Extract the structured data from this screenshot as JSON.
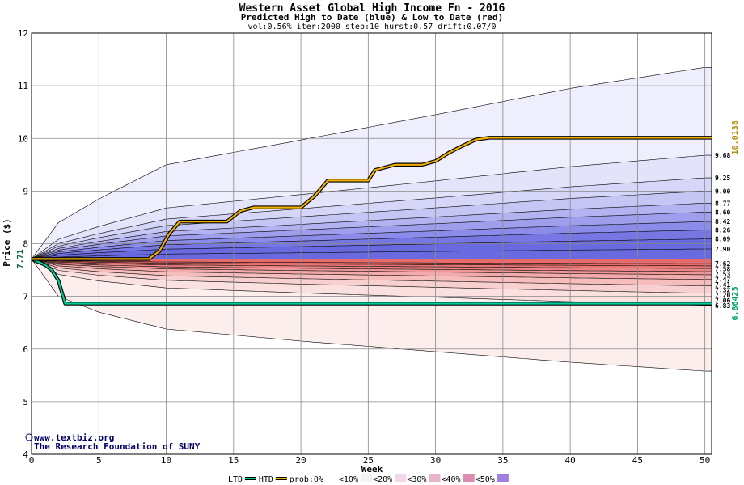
{
  "chart_data": {
    "type": "area",
    "title": "Western Asset Global High Income Fn - 2016",
    "subtitle": "Predicted High to Date (blue) &  Low to Date (red)",
    "params": "vol:0.56% iter:2000 step:10 hurst:0.57 drift:0.07/0",
    "xlabel": "Week",
    "ylabel": "Price ($)",
    "xlim": [
      0,
      50.5
    ],
    "ylim": [
      4,
      12
    ],
    "x_ticks": [
      0,
      5,
      10,
      15,
      20,
      25,
      30,
      35,
      40,
      45,
      50
    ],
    "y_ticks": [
      4,
      5,
      6,
      7,
      8,
      9,
      10,
      11,
      12
    ],
    "grid": true,
    "start_price": 7.71,
    "start_label": "7.71",
    "high_quantile_labels": [
      "9.68",
      "9.25",
      "9.00",
      "8.77",
      "8.60",
      "8.42",
      "8.26",
      "8.09",
      "7.90"
    ],
    "low_quantile_labels": [
      "7.62",
      "7.58",
      "7.53",
      "7.47",
      "7.41",
      "7.32",
      "7.20",
      "7.06",
      "6.83"
    ],
    "high_envelope": [
      [
        0,
        7.71
      ],
      [
        2,
        8.4
      ],
      [
        5,
        8.85
      ],
      [
        10,
        9.5
      ],
      [
        20,
        9.97
      ],
      [
        30,
        10.45
      ],
      [
        40,
        10.95
      ],
      [
        50,
        11.35
      ]
    ],
    "low_envelope": [
      [
        0,
        7.71
      ],
      [
        2,
        7.0
      ],
      [
        5,
        6.7
      ],
      [
        10,
        6.38
      ],
      [
        20,
        6.15
      ],
      [
        30,
        5.95
      ],
      [
        40,
        5.75
      ],
      [
        50,
        5.58
      ]
    ],
    "high_to_date": {
      "name": "HTD",
      "color": "#f0b000",
      "final_value": 10.0138,
      "final_label": "10.0138",
      "points": [
        [
          0,
          7.71
        ],
        [
          8.7,
          7.71
        ],
        [
          9.5,
          7.86
        ],
        [
          10.2,
          8.18
        ],
        [
          11,
          8.42
        ],
        [
          14.5,
          8.42
        ],
        [
          15.5,
          8.62
        ],
        [
          16.5,
          8.69
        ],
        [
          20,
          8.69
        ],
        [
          21,
          8.9
        ],
        [
          22,
          9.2
        ],
        [
          25,
          9.2
        ],
        [
          25.5,
          9.4
        ],
        [
          27,
          9.5
        ],
        [
          29,
          9.5
        ],
        [
          30,
          9.57
        ],
        [
          31,
          9.73
        ],
        [
          32,
          9.86
        ],
        [
          33,
          9.98
        ],
        [
          34,
          10.0138
        ],
        [
          50.5,
          10.0138
        ]
      ]
    },
    "low_to_date": {
      "name": "LTD",
      "color": "#00cc99",
      "final_value": 6.86425,
      "final_label": "6.86425",
      "points": [
        [
          0,
          7.71
        ],
        [
          1,
          7.6
        ],
        [
          1.5,
          7.5
        ],
        [
          2,
          7.3
        ],
        [
          2.5,
          6.86425
        ],
        [
          50.5,
          6.86425
        ]
      ]
    },
    "legend": {
      "ltd": "LTD",
      "htd": "HTD",
      "prob0": "prob:0%",
      "items": [
        "<10%",
        "<20%",
        "<30%",
        "<40%",
        "<50%"
      ],
      "placement": "bottom"
    },
    "credits": [
      "www.textbiz.org",
      "The Research Foundation of SUNY"
    ]
  },
  "colors": {
    "blue_bands": [
      "#eeeefc",
      "#e3e3fa",
      "#d6d6f8",
      "#c6c6f5",
      "#b3b3f1",
      "#9e9eed",
      "#8b8be9",
      "#7777e3",
      "#6a6ae0"
    ],
    "red_bands": [
      "#fdeeee",
      "#fbe0e0",
      "#f9d0d0",
      "#f6bdbd",
      "#f3aaaa",
      "#f09797",
      "#ec8585",
      "#e97676",
      "#e66b6b"
    ],
    "legend_swatches": [
      "#ffffff",
      "#f8f0f8",
      "#f0d8e8",
      "#e8b4cc",
      "#d88cb0",
      "#9f7fe0"
    ]
  }
}
